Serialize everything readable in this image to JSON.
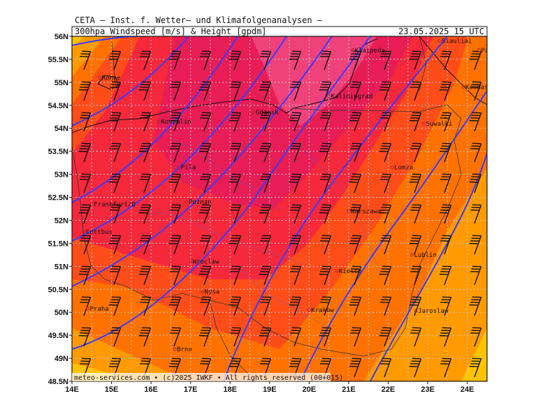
{
  "header": {
    "source": "CETA – Inst. f. Wetter– und Klimafolgenanalysen –",
    "field": "300hpa Windspeed [m/s] & Height [gpdm]",
    "valid": "23.05.2025 15 UTC"
  },
  "footer": "meteo-services.com • (c)2025 IWKF • All rights reserved (00+015)",
  "axes": {
    "lon_labels": [
      "14E",
      "15E",
      "16E",
      "17E",
      "18E",
      "19E",
      "20E",
      "21E",
      "22E",
      "23E",
      "24E"
    ],
    "lat_labels": [
      "56N",
      "55.5N",
      "55N",
      "54.5N",
      "54N",
      "53.5N",
      "53N",
      "52.5N",
      "52N",
      "51.5N",
      "51N",
      "50.5N",
      "50N",
      "49.5N",
      "49N",
      "48.5N"
    ],
    "lon_range": [
      14,
      24.5
    ],
    "lat_range": [
      48.5,
      56
    ]
  },
  "cities": [
    {
      "name": "Klaipeda",
      "lon": 21.1,
      "lat": 55.7
    },
    {
      "name": "Siauliai",
      "lon": 23.3,
      "lat": 55.9
    },
    {
      "name": "Panevezys",
      "lon": 24.3,
      "lat": 55.7
    },
    {
      "name": "Ronne",
      "lon": 14.7,
      "lat": 55.1
    },
    {
      "name": "Kaunas",
      "lon": 23.9,
      "lat": 54.9
    },
    {
      "name": "Kaliningrad",
      "lon": 20.5,
      "lat": 54.7
    },
    {
      "name": "Gdansk",
      "lon": 18.6,
      "lat": 54.35
    },
    {
      "name": "Koszalin",
      "lon": 16.2,
      "lat": 54.15
    },
    {
      "name": "Suwalki",
      "lon": 22.9,
      "lat": 54.1
    },
    {
      "name": "Lomza",
      "lon": 22.1,
      "lat": 53.15
    },
    {
      "name": "Pila",
      "lon": 16.7,
      "lat": 53.15
    },
    {
      "name": "Frankfurt/O",
      "lon": 14.5,
      "lat": 52.35
    },
    {
      "name": "Poznan",
      "lon": 16.9,
      "lat": 52.4
    },
    {
      "name": "Warszawa",
      "lon": 21.0,
      "lat": 52.2
    },
    {
      "name": "Cottbus",
      "lon": 14.3,
      "lat": 51.75
    },
    {
      "name": "Lublin",
      "lon": 22.6,
      "lat": 51.25
    },
    {
      "name": "Wroclaw",
      "lon": 17.0,
      "lat": 51.1
    },
    {
      "name": "Kielce",
      "lon": 20.7,
      "lat": 50.9
    },
    {
      "name": "Nysa",
      "lon": 17.3,
      "lat": 50.45
    },
    {
      "name": "Krakow",
      "lon": 20.0,
      "lat": 50.05
    },
    {
      "name": "Jaroslaw",
      "lon": 22.7,
      "lat": 50.03
    },
    {
      "name": "Praha",
      "lon": 14.4,
      "lat": 50.08
    },
    {
      "name": "Brno",
      "lon": 16.6,
      "lat": 49.2
    }
  ],
  "colors": {
    "speed_scale": [
      "#ffe100",
      "#ffc300",
      "#ff9a00",
      "#ff7200",
      "#ff4d1a",
      "#f5283c",
      "#e81d55",
      "#f0427a"
    ],
    "contour": "#3a3aff",
    "grid": "#c8c8c8"
  }
}
